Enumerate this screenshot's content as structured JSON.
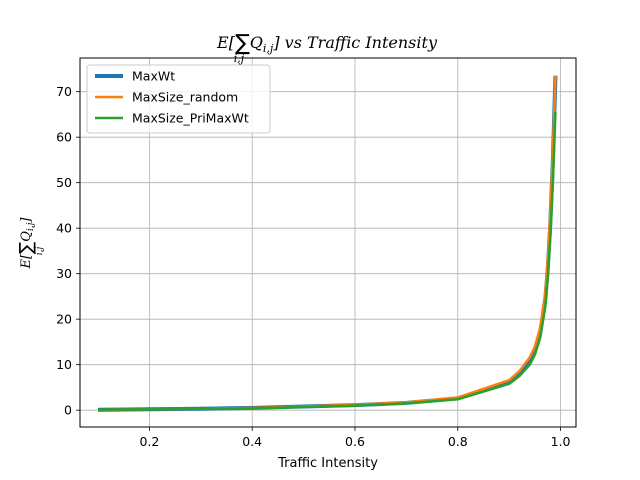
{
  "chart_data": {
    "type": "line",
    "title": {
      "prefix": "E[",
      "sigma": "∑",
      "sub": "i,j",
      "var": "Q",
      "var_sub": "i,j",
      "suffix": "] vs Traffic Intensity"
    },
    "xlabel": "Traffic Intensity",
    "ylabel": {
      "prefix": "E[",
      "sigma": "∑",
      "sub": "i,j",
      "var": "Q",
      "var_sub": "i,j",
      "suffix": "]"
    },
    "xlim": [
      0.065,
      1.03
    ],
    "ylim": [
      -3.7,
      77.4
    ],
    "x_ticks": [
      0.2,
      0.4,
      0.6,
      0.8,
      1.0
    ],
    "x_tick_labels": [
      "0.2",
      "0.4",
      "0.6",
      "0.8",
      "1.0"
    ],
    "y_ticks": [
      0,
      10,
      20,
      30,
      40,
      50,
      60,
      70
    ],
    "y_tick_labels": [
      "0",
      "10",
      "20",
      "30",
      "40",
      "50",
      "60",
      "70"
    ],
    "grid": true,
    "legend_position": "top-left",
    "series": [
      {
        "name": "MaxWt",
        "color": "#1f77b4",
        "x": [
          0.1,
          0.2,
          0.3,
          0.4,
          0.5,
          0.6,
          0.7,
          0.8,
          0.9,
          0.92,
          0.94,
          0.95,
          0.96,
          0.97,
          0.975,
          0.98,
          0.985,
          0.99
        ],
        "y": [
          0.1,
          0.2,
          0.3,
          0.5,
          0.8,
          1.1,
          1.6,
          2.6,
          6.0,
          7.8,
          10.6,
          12.9,
          16.7,
          24.0,
          31.0,
          41.0,
          55.0,
          73.5
        ]
      },
      {
        "name": "MaxSize_random",
        "color": "#ff7f0e",
        "x": [
          0.1,
          0.2,
          0.3,
          0.4,
          0.5,
          0.6,
          0.7,
          0.8,
          0.9,
          0.92,
          0.94,
          0.95,
          0.96,
          0.97,
          0.975,
          0.98,
          0.985,
          0.99
        ],
        "y": [
          0.1,
          0.2,
          0.3,
          0.5,
          0.8,
          1.2,
          1.7,
          2.8,
          6.6,
          8.6,
          11.6,
          14.0,
          18.0,
          25.6,
          33.0,
          43.5,
          57.0,
          73.5
        ]
      },
      {
        "name": "MaxSize_PriMaxWt",
        "color": "#2ca02c",
        "x": [
          0.1,
          0.2,
          0.3,
          0.4,
          0.5,
          0.6,
          0.7,
          0.8,
          0.9,
          0.92,
          0.94,
          0.95,
          0.96,
          0.97,
          0.975,
          0.98,
          0.985,
          0.99
        ],
        "y": [
          0.1,
          0.2,
          0.3,
          0.4,
          0.7,
          1.0,
          1.5,
          2.4,
          5.8,
          7.5,
          10.0,
          12.2,
          15.8,
          22.5,
          29.0,
          38.0,
          50.0,
          65.5
        ]
      }
    ]
  }
}
